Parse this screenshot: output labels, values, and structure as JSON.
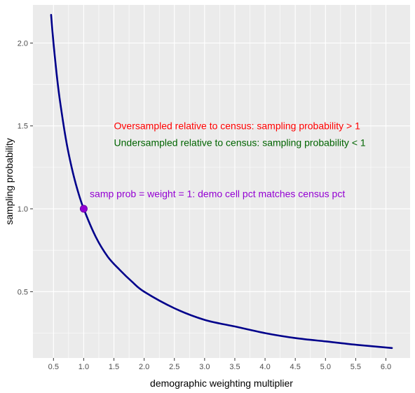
{
  "chart_data": {
    "type": "line",
    "title": "",
    "xlabel": "demographic weighting multiplier",
    "ylabel": "sampling probability",
    "xlim": [
      0.16,
      6.4
    ],
    "ylim": [
      0.1,
      2.23
    ],
    "x_ticks": [
      0.5,
      1.0,
      1.5,
      2.0,
      2.5,
      3.0,
      3.5,
      4.0,
      4.5,
      5.0,
      5.5,
      6.0
    ],
    "x_tick_labels": [
      "0.5",
      "1.0",
      "1.5",
      "2.0",
      "2.5",
      "3.0",
      "3.5",
      "4.0",
      "4.5",
      "5.0",
      "5.5",
      "6.0"
    ],
    "y_ticks": [
      0.5,
      1.0,
      1.5,
      2.0
    ],
    "y_tick_labels": [
      "0.5",
      "1.0",
      "1.5",
      "2.0"
    ],
    "grid": true,
    "series": [
      {
        "color": "#00008b",
        "x": [
          0.46,
          0.5,
          0.55,
          0.6,
          0.7,
          0.8,
          0.9,
          1.0,
          1.2,
          1.4,
          1.6,
          1.8,
          2.0,
          2.5,
          3.0,
          3.5,
          4.0,
          4.5,
          5.0,
          5.5,
          6.1
        ],
        "y": [
          2.17,
          2.0,
          1.82,
          1.67,
          1.43,
          1.25,
          1.11,
          1.0,
          0.83,
          0.71,
          0.63,
          0.56,
          0.5,
          0.4,
          0.33,
          0.29,
          0.25,
          0.22,
          0.2,
          0.18,
          0.16
        ]
      }
    ],
    "point": {
      "x": 1.0,
      "y": 1.0,
      "color": "#9400d3"
    },
    "annotations": [
      {
        "text": "Oversampled relative to census: sampling probability > 1",
        "x": 1.5,
        "y": 1.5,
        "color": "#ff0000"
      },
      {
        "text": "Undersampled relative to census: sampling probability < 1",
        "x": 1.5,
        "y": 1.4,
        "color": "#006400"
      },
      {
        "text": "samp prob = weight = 1: demo cell pct matches census pct",
        "x": 1.1,
        "y": 1.09,
        "color": "#9400d3"
      }
    ]
  }
}
